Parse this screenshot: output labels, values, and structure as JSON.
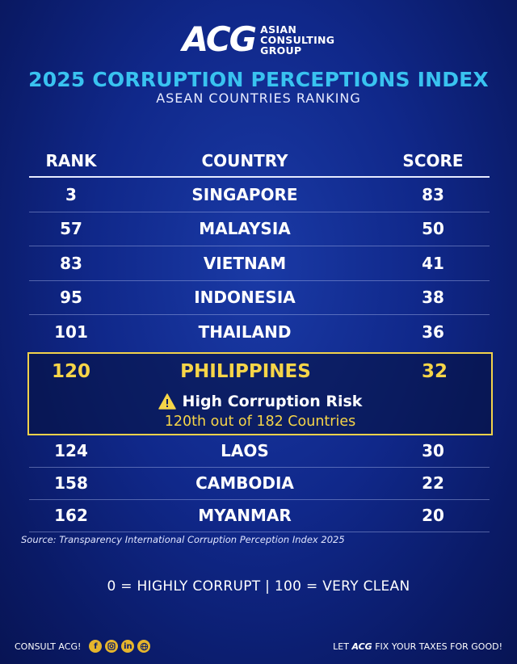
{
  "logo": {
    "mark": "ACG",
    "line1": "ASIAN",
    "line2": "CONSULTING",
    "line3": "GROUP"
  },
  "title": "2025 CORRUPTION PERCEPTIONS INDEX",
  "subtitle": "ASEAN COUNTRIES RANKING",
  "table": {
    "headers": {
      "rank": "RANK",
      "country": "COUNTRY",
      "score": "SCORE"
    },
    "rows_top": [
      {
        "rank": "3",
        "country": "SINGAPORE",
        "score": "83"
      },
      {
        "rank": "57",
        "country": "MALAYSIA",
        "score": "50"
      },
      {
        "rank": "83",
        "country": "VIETNAM",
        "score": "41"
      },
      {
        "rank": "95",
        "country": "INDONESIA",
        "score": "38"
      },
      {
        "rank": "101",
        "country": "THAILAND",
        "score": "36"
      }
    ],
    "highlight": {
      "rank": "120",
      "country": "PHILIPPINES",
      "score": "32",
      "warning": "High Corruption Risk",
      "note": "120th out of 182 Countries"
    },
    "rows_bottom": [
      {
        "rank": "124",
        "country": "LAOS",
        "score": "30"
      },
      {
        "rank": "158",
        "country": "CAMBODIA",
        "score": "22"
      },
      {
        "rank": "162",
        "country": "MYANMAR",
        "score": "20"
      }
    ]
  },
  "source": "Source: Transparency International Corruption Perception Index 2025",
  "scale_note": "0 = HIGHLY CORRUPT  |  100 = VERY CLEAN",
  "footer": {
    "left_label": "CONSULT ACG!",
    "social_icons": [
      "facebook-icon",
      "instagram-icon",
      "linkedin-icon",
      "globe-icon"
    ],
    "right_prefix": "LET ",
    "right_brand": "ACG",
    "right_suffix": " FIX YOUR TAXES FOR GOOD!"
  },
  "colors": {
    "title": "#39c3f0",
    "highlight": "#f6d548",
    "background": "#10288a"
  }
}
